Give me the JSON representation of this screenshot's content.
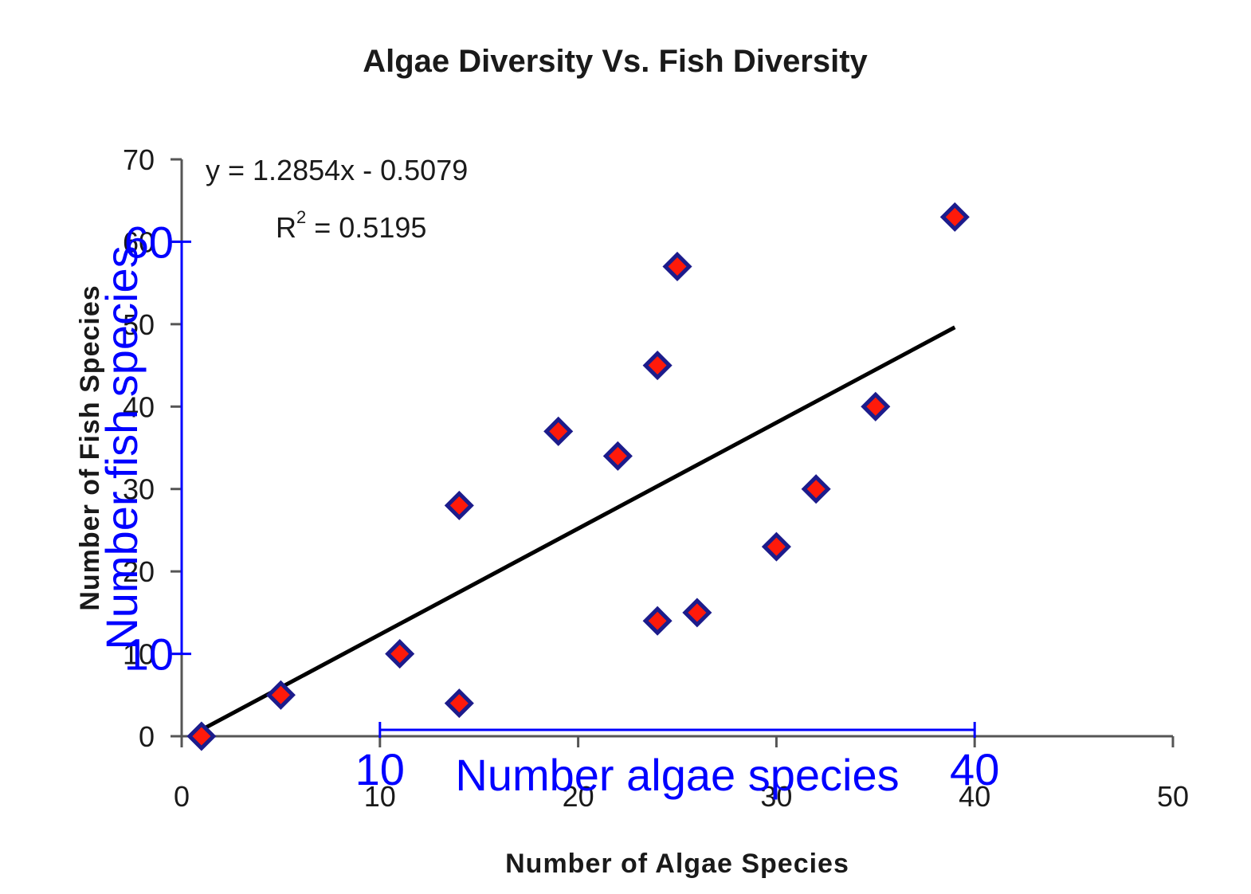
{
  "chart_data": {
    "type": "scatter",
    "title": "Algae Diversity Vs. Fish Diversity",
    "xlabel": "Number of Algae Species",
    "ylabel": "Number of Fish Species",
    "xlim": [
      0,
      50
    ],
    "ylim": [
      0,
      70
    ],
    "xticks": [
      "0",
      "10",
      "20",
      "30",
      "40",
      "50"
    ],
    "yticks": [
      "0",
      "10",
      "20",
      "30",
      "40",
      "50",
      "60",
      "70"
    ],
    "grid": false,
    "legend": "none",
    "series": [
      {
        "points": [
          {
            "x": 1,
            "y": 0
          },
          {
            "x": 5,
            "y": 5
          },
          {
            "x": 11,
            "y": 10
          },
          {
            "x": 14,
            "y": 4
          },
          {
            "x": 14,
            "y": 28
          },
          {
            "x": 19,
            "y": 37
          },
          {
            "x": 22,
            "y": 34
          },
          {
            "x": 24,
            "y": 14
          },
          {
            "x": 24,
            "y": 45
          },
          {
            "x": 25,
            "y": 57
          },
          {
            "x": 26,
            "y": 15
          },
          {
            "x": 30,
            "y": 23
          },
          {
            "x": 32,
            "y": 30
          },
          {
            "x": 35,
            "y": 40
          },
          {
            "x": 39,
            "y": 63
          }
        ]
      }
    ],
    "trendline": {
      "type": "linear",
      "slope": 1.2854,
      "intercept": -0.5079,
      "x_range": [
        1,
        39
      ],
      "equation": "y = 1.2854x - 0.5079",
      "r2_label": "R",
      "r2_sup": "2",
      "r2_value": " = 0.5195"
    },
    "colors": {
      "marker_fill": "#ff1a0a",
      "marker_edge": "#1c1c8c",
      "trendline": "#000000",
      "axis": "#555555",
      "overlay": "#0000ff"
    },
    "overlay_annotation": {
      "x_axis": {
        "range": [
          10,
          40
        ],
        "labels": [
          "10",
          "40"
        ],
        "title": "Number algae species"
      },
      "y_axis": {
        "range": [
          10,
          60
        ],
        "labels": [
          "10",
          "60"
        ],
        "title": "Number fish species"
      }
    }
  }
}
